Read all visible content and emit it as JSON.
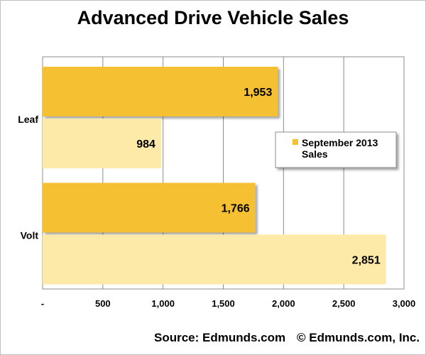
{
  "chart_data": {
    "type": "bar",
    "orientation": "horizontal",
    "title": "Advanced Drive Vehicle Sales",
    "categories": [
      "Leaf",
      "Volt"
    ],
    "series": [
      {
        "name": "September 2013 Sales",
        "values": [
          1953,
          1766
        ],
        "value_labels": [
          "1,953",
          "1,766"
        ],
        "color": "#f5c033"
      },
      {
        "name": "",
        "values": [
          984,
          2851
        ],
        "value_labels": [
          "984",
          "2,851"
        ],
        "color": "#fde9a8"
      }
    ],
    "xlim": [
      0,
      3000
    ],
    "x_ticks": [
      0,
      500,
      1000,
      1500,
      2000,
      2500,
      3000
    ],
    "x_tick_labels": [
      "-",
      "500",
      "1,000",
      "1,500",
      "2,000",
      "2,500",
      "3,000"
    ],
    "grid": true,
    "legend": {
      "position": "right",
      "entries": [
        "September 2013 Sales"
      ],
      "lines": [
        "September 2013",
        "Sales"
      ]
    }
  },
  "footer": {
    "source": "Source: Edmunds.com",
    "copyright": "© Edmunds.com, Inc."
  }
}
